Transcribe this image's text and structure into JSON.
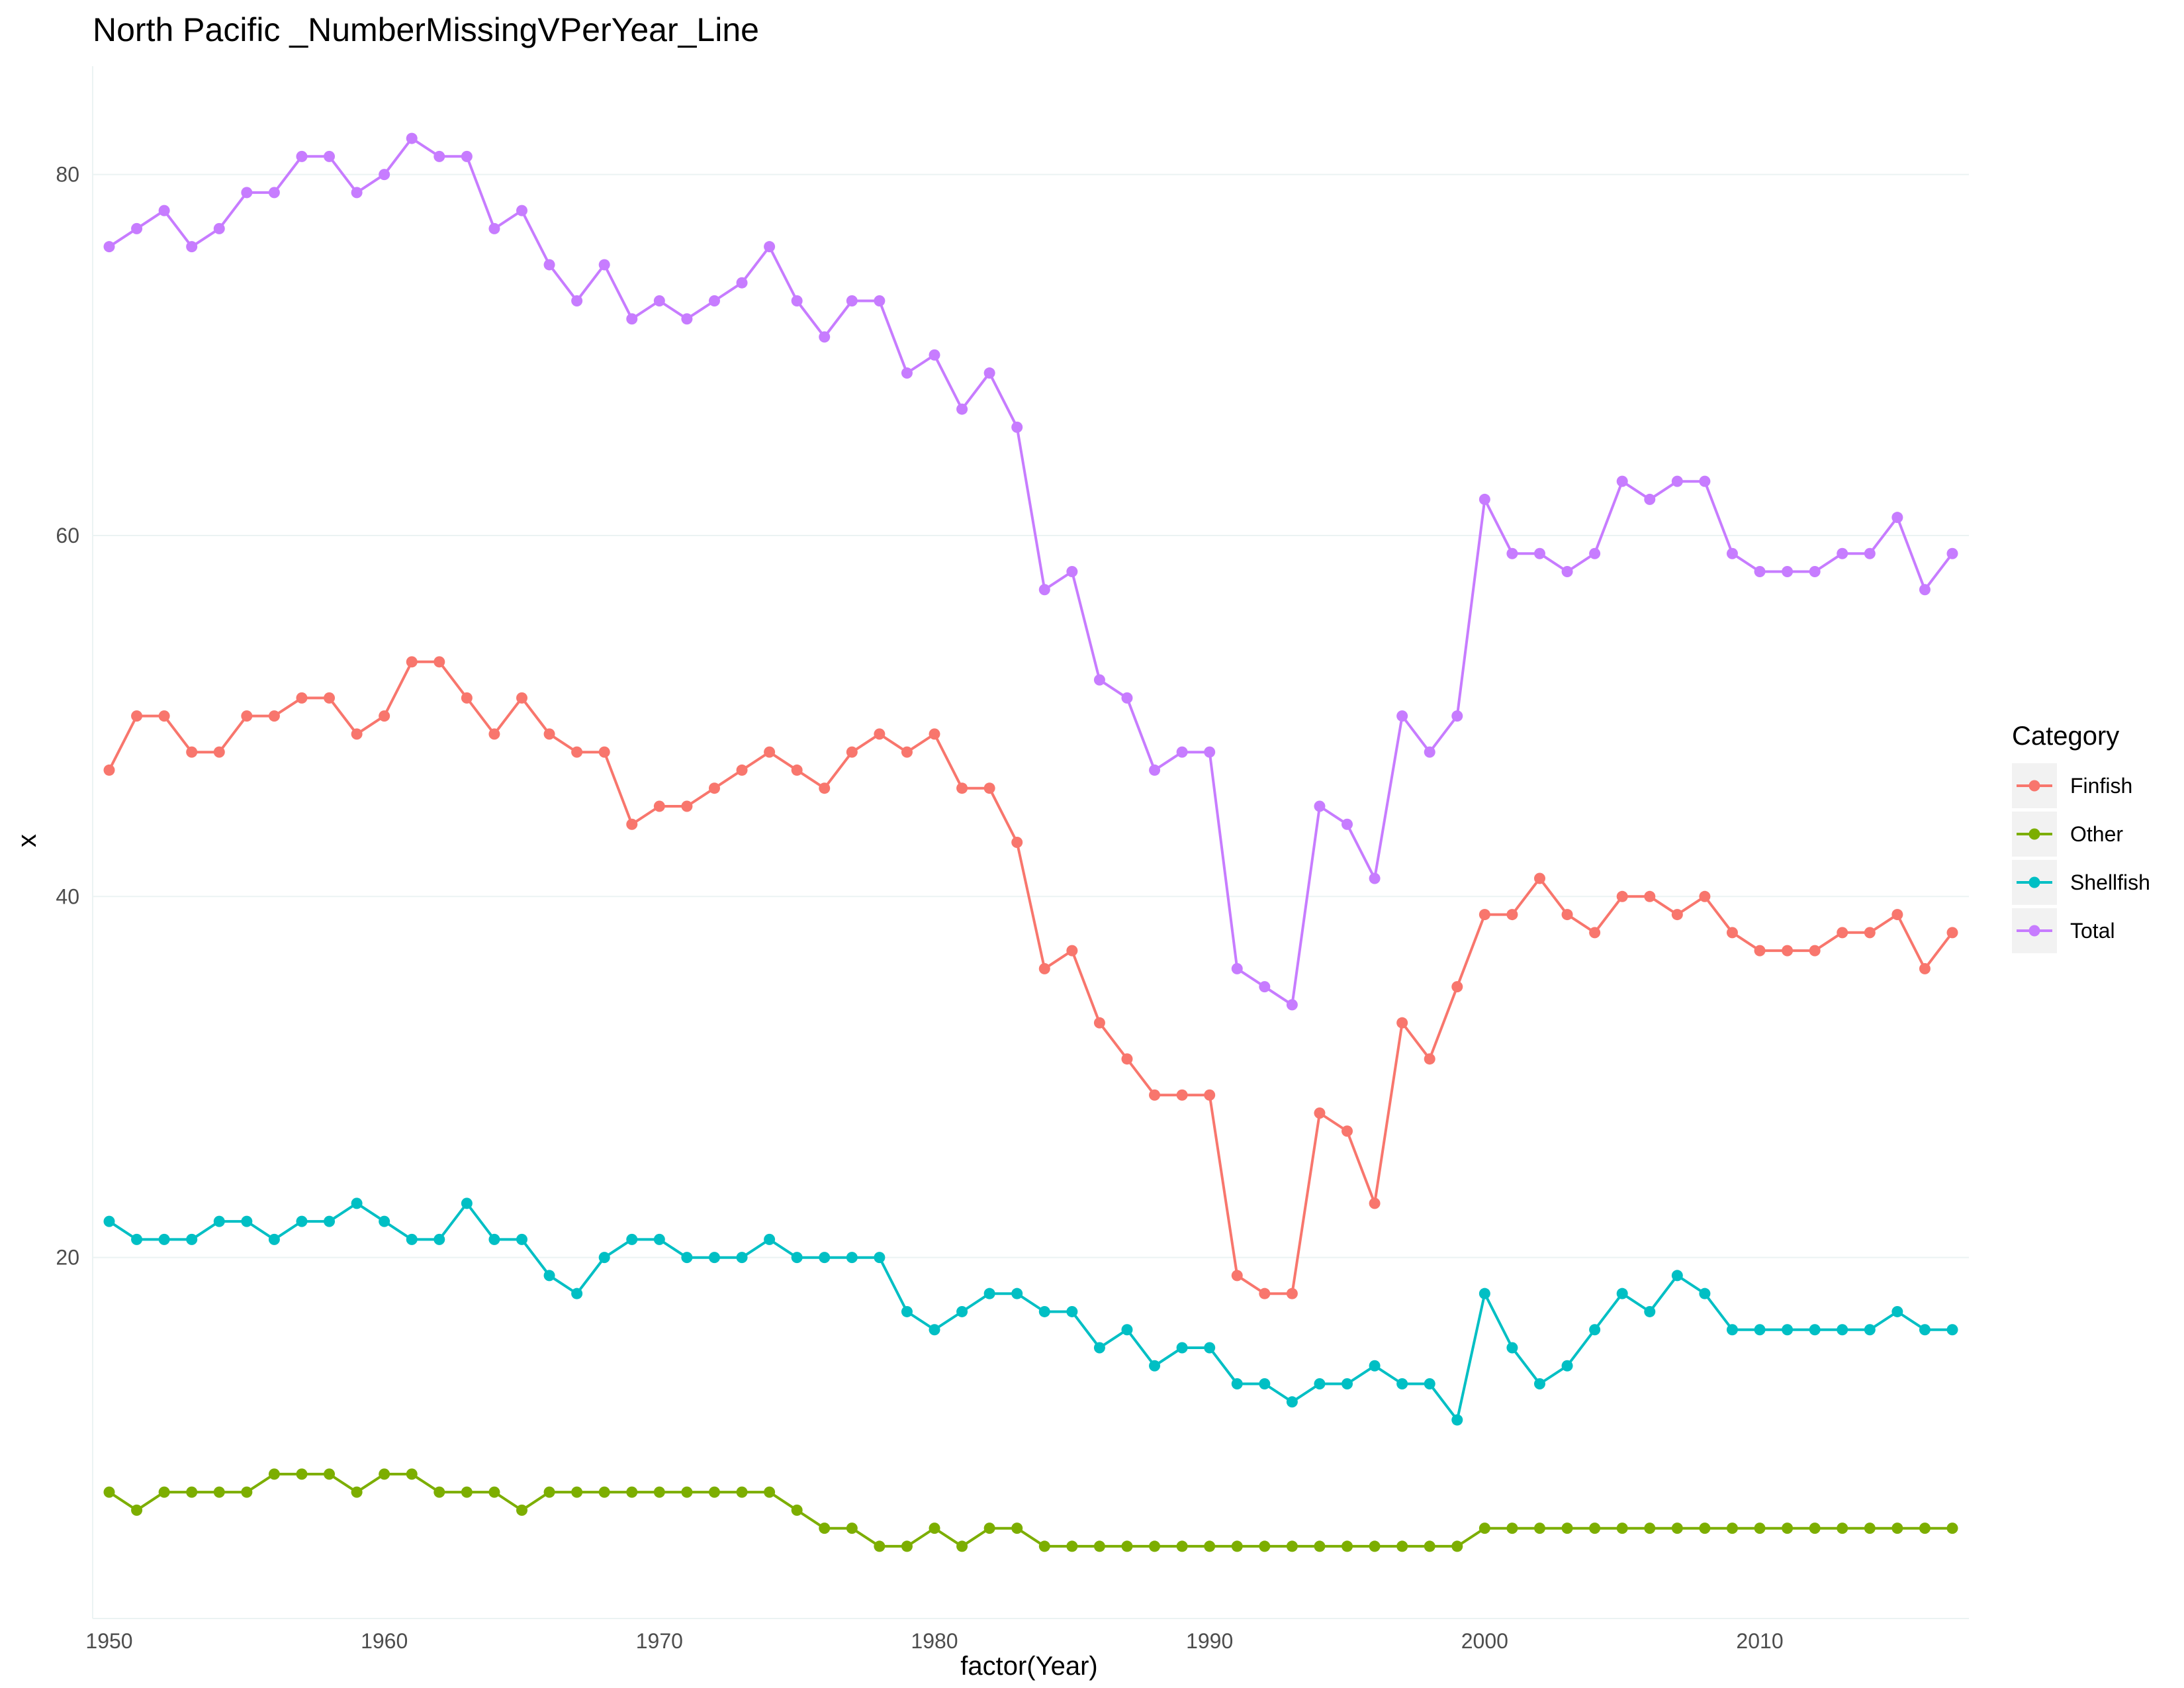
{
  "chart_data": {
    "type": "line",
    "title": "North Pacific _NumberMissingVPerYear_Line",
    "xlabel": "factor(Year)",
    "ylabel": "x",
    "x_tick_labels": [
      "1950",
      "1960",
      "1970",
      "1980",
      "1990",
      "2000",
      "2010"
    ],
    "y_ticks": [
      20,
      40,
      60,
      80
    ],
    "ylim": [
      0,
      86
    ],
    "grid": true,
    "legend": {
      "title": "Category",
      "position": "right"
    },
    "x": [
      1950,
      1951,
      1952,
      1953,
      1954,
      1955,
      1956,
      1957,
      1958,
      1959,
      1960,
      1961,
      1962,
      1963,
      1964,
      1965,
      1966,
      1967,
      1968,
      1969,
      1970,
      1971,
      1972,
      1973,
      1974,
      1975,
      1976,
      1977,
      1978,
      1979,
      1980,
      1981,
      1982,
      1983,
      1984,
      1985,
      1986,
      1987,
      1988,
      1989,
      1990,
      1991,
      1992,
      1993,
      1994,
      1995,
      1996,
      1997,
      1998,
      1999,
      2000,
      2001,
      2002,
      2003,
      2004,
      2005,
      2006,
      2007,
      2008,
      2009,
      2010,
      2011,
      2012,
      2013,
      2014,
      2015,
      2016,
      2017
    ],
    "series": [
      {
        "name": "Finfish",
        "color": "#f8766d",
        "values": [
          47,
          50,
          50,
          48,
          48,
          50,
          50,
          51,
          51,
          49,
          50,
          53,
          53,
          51,
          49,
          51,
          49,
          48,
          48,
          44,
          45,
          45,
          46,
          47,
          48,
          47,
          46,
          48,
          49,
          48,
          49,
          46,
          46,
          43,
          36,
          37,
          33,
          31,
          29,
          29,
          29,
          19,
          18,
          18,
          28,
          27,
          23,
          33,
          31,
          35,
          39,
          39,
          41,
          39,
          38,
          40,
          40,
          39,
          40,
          38,
          37,
          37,
          37,
          38,
          38,
          39,
          36,
          38
        ]
      },
      {
        "name": "Other",
        "color": "#7cae00",
        "values": [
          7,
          6,
          7,
          7,
          7,
          7,
          8,
          8,
          8,
          7,
          8,
          8,
          7,
          7,
          7,
          6,
          7,
          7,
          7,
          7,
          7,
          7,
          7,
          7,
          7,
          6,
          5,
          5,
          4,
          4,
          5,
          4,
          5,
          5,
          4,
          4,
          4,
          4,
          4,
          4,
          4,
          4,
          4,
          4,
          4,
          4,
          4,
          4,
          4,
          4,
          5,
          5,
          5,
          5,
          5,
          5,
          5,
          5,
          5,
          5,
          5,
          5,
          5,
          5,
          5,
          5,
          5,
          5
        ]
      },
      {
        "name": "Shellfish",
        "color": "#00bfc4",
        "values": [
          22,
          21,
          21,
          21,
          22,
          22,
          21,
          22,
          22,
          23,
          22,
          21,
          21,
          23,
          21,
          21,
          19,
          18,
          20,
          21,
          21,
          20,
          20,
          20,
          21,
          20,
          20,
          20,
          20,
          17,
          16,
          17,
          18,
          18,
          17,
          17,
          15,
          16,
          14,
          15,
          15,
          13,
          13,
          12,
          13,
          13,
          14,
          13,
          13,
          11,
          18,
          15,
          13,
          14,
          16,
          18,
          17,
          19,
          18,
          16,
          16,
          16,
          16,
          16,
          16,
          17,
          16,
          16
        ]
      },
      {
        "name": "Total",
        "color": "#c77cff",
        "values": [
          76,
          77,
          78,
          76,
          77,
          79,
          79,
          81,
          81,
          79,
          80,
          82,
          81,
          81,
          77,
          78,
          75,
          73,
          75,
          72,
          73,
          72,
          73,
          74,
          76,
          73,
          71,
          73,
          73,
          69,
          70,
          67,
          69,
          66,
          57,
          58,
          52,
          51,
          47,
          48,
          48,
          36,
          35,
          34,
          45,
          44,
          41,
          50,
          48,
          50,
          62,
          59,
          59,
          58,
          59,
          63,
          62,
          63,
          63,
          59,
          58,
          58,
          58,
          59,
          59,
          61,
          57,
          59
        ]
      }
    ]
  }
}
